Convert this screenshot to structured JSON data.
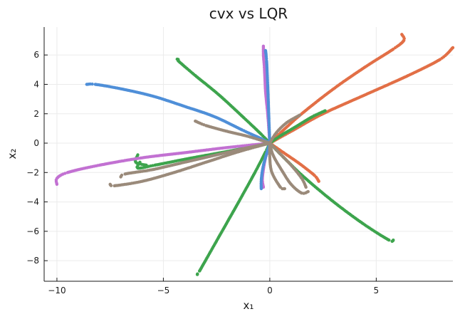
{
  "chart_data": {
    "type": "scatter",
    "title": "cvx vs LQR",
    "xlabel": "x₁",
    "ylabel": "x₂",
    "xlim": [
      -10.6,
      8.6
    ],
    "ylim": [
      -9.4,
      7.9
    ],
    "xticks": [
      -10,
      -5,
      0,
      5
    ],
    "yticks": [
      -8,
      -6,
      -4,
      -2,
      0,
      2,
      4,
      6
    ],
    "xtick_labels": [
      "−10",
      "−5",
      "0",
      "5"
    ],
    "ytick_labels": [
      "−8",
      "−6",
      "−4",
      "−2",
      "0",
      "2",
      "4",
      "6"
    ],
    "grid": true,
    "legend": false,
    "series": [
      {
        "color": "#e26f46",
        "points": [
          [
            6.2,
            7.4
          ],
          [
            6.3,
            7.0
          ],
          [
            5.8,
            6.4
          ],
          [
            4.5,
            5.2
          ],
          [
            3.0,
            3.7
          ],
          [
            1.5,
            2.0
          ],
          [
            0.5,
            0.7
          ],
          [
            0,
            0
          ]
        ]
      },
      {
        "color": "#e26f46",
        "points": [
          [
            8.6,
            6.5
          ],
          [
            8.0,
            5.7
          ],
          [
            6.5,
            4.6
          ],
          [
            4.5,
            3.3
          ],
          [
            2.5,
            2.0
          ],
          [
            1.0,
            0.8
          ],
          [
            0,
            0
          ]
        ]
      },
      {
        "color": "#e26f46",
        "points": [
          [
            2.3,
            -2.6
          ],
          [
            2.1,
            -2.2
          ],
          [
            1.4,
            -1.4
          ],
          [
            0.7,
            -0.7
          ],
          [
            0,
            0
          ]
        ]
      },
      {
        "color": "#3da44d",
        "points": [
          [
            -4.3,
            5.7
          ],
          [
            -4.3,
            5.6
          ],
          [
            -3.5,
            4.6
          ],
          [
            -2.4,
            3.3
          ],
          [
            -1.2,
            1.7
          ],
          [
            -0.4,
            0.6
          ],
          [
            0,
            0
          ]
        ]
      },
      {
        "color": "#3da44d",
        "points": [
          [
            -3.4,
            -8.9
          ],
          [
            -3.3,
            -8.7
          ],
          [
            -2.4,
            -6.4
          ],
          [
            -1.5,
            -4.1
          ],
          [
            -0.7,
            -2.0
          ],
          [
            -0.2,
            -0.6
          ],
          [
            0,
            0
          ]
        ]
      },
      {
        "color": "#3da44d",
        "points": [
          [
            5.8,
            -6.6
          ],
          [
            5.6,
            -6.6
          ],
          [
            4.4,
            -5.5
          ],
          [
            3.0,
            -4.0
          ],
          [
            1.6,
            -2.3
          ],
          [
            0.6,
            -0.9
          ],
          [
            0,
            0
          ]
        ]
      },
      {
        "color": "#3da44d",
        "points": [
          [
            -6.1,
            -1.3
          ],
          [
            -6.2,
            -1.7
          ],
          [
            -5.4,
            -1.5
          ],
          [
            -4.0,
            -1.1
          ],
          [
            -2.5,
            -0.7
          ],
          [
            -1.2,
            -0.35
          ],
          [
            0,
            0
          ]
        ]
      },
      {
        "color": "#3da44d",
        "points": [
          [
            -6.2,
            -0.8
          ],
          [
            -6.3,
            -1.3
          ],
          [
            -5.8,
            -1.5
          ]
        ]
      },
      {
        "color": "#3da44d",
        "points": [
          [
            2.6,
            2.2
          ],
          [
            2.0,
            1.8
          ],
          [
            1.2,
            1.1
          ],
          [
            0.5,
            0.5
          ],
          [
            0,
            0
          ]
        ]
      },
      {
        "color": "#c271d2",
        "points": [
          [
            -10.0,
            -2.8
          ],
          [
            -10.0,
            -2.4
          ],
          [
            -9.5,
            -2.0
          ],
          [
            -8.0,
            -1.5
          ],
          [
            -6.0,
            -1.0
          ],
          [
            -4.0,
            -0.65
          ],
          [
            -2.0,
            -0.3
          ],
          [
            0,
            0
          ]
        ]
      },
      {
        "color": "#c271d2",
        "points": [
          [
            -0.3,
            6.6
          ],
          [
            -0.3,
            6.0
          ],
          [
            -0.25,
            5.0
          ],
          [
            -0.2,
            3.5
          ],
          [
            -0.1,
            2.0
          ],
          [
            0,
            0
          ]
        ]
      },
      {
        "color": "#c271d2",
        "points": [
          [
            -0.3,
            -3.0
          ],
          [
            -0.35,
            -2.5
          ],
          [
            -0.3,
            -1.8
          ],
          [
            -0.2,
            -1.0
          ],
          [
            -0.05,
            -0.3
          ],
          [
            0,
            0
          ]
        ]
      },
      {
        "color": "#4f8fd8",
        "points": [
          [
            -8.6,
            4.0
          ],
          [
            -8.2,
            4.0
          ],
          [
            -7.0,
            3.7
          ],
          [
            -5.5,
            3.2
          ],
          [
            -4.0,
            2.5
          ],
          [
            -2.6,
            1.8
          ],
          [
            -1.3,
            0.9
          ],
          [
            -0.4,
            0.3
          ],
          [
            0,
            0
          ]
        ]
      },
      {
        "color": "#4f8fd8",
        "points": [
          [
            -0.2,
            6.3
          ],
          [
            -0.15,
            5.6
          ],
          [
            -0.1,
            4.0
          ],
          [
            -0.05,
            2.0
          ],
          [
            0,
            0
          ]
        ]
      },
      {
        "color": "#4f8fd8",
        "points": [
          [
            -0.4,
            -3.1
          ],
          [
            -0.4,
            -2.5
          ],
          [
            -0.3,
            -1.5
          ],
          [
            0,
            0
          ]
        ]
      },
      {
        "color": "#9a8a7a",
        "points": [
          [
            -3.5,
            1.5
          ],
          [
            -3.0,
            1.2
          ],
          [
            -2.0,
            0.8
          ],
          [
            -1.0,
            0.45
          ],
          [
            0,
            0
          ]
        ]
      },
      {
        "color": "#9a8a7a",
        "points": [
          [
            1.4,
            1.9
          ],
          [
            0.8,
            1.4
          ],
          [
            0.3,
            0.7
          ],
          [
            0,
            0
          ]
        ]
      },
      {
        "color": "#9a8a7a",
        "points": [
          [
            -7.5,
            -2.8
          ],
          [
            -7.3,
            -2.9
          ],
          [
            -6.0,
            -2.6
          ],
          [
            -4.5,
            -2.0
          ],
          [
            -3.0,
            -1.3
          ],
          [
            -1.5,
            -0.6
          ],
          [
            0,
            0
          ]
        ]
      },
      {
        "color": "#9a8a7a",
        "points": [
          [
            -7.0,
            -2.3
          ],
          [
            -6.8,
            -2.1
          ],
          [
            -5.5,
            -1.8
          ],
          [
            -4.0,
            -1.3
          ],
          [
            -2.5,
            -0.8
          ],
          [
            -1.0,
            -0.3
          ],
          [
            0,
            0
          ]
        ]
      },
      {
        "color": "#9a8a7a",
        "points": [
          [
            0.7,
            -3.1
          ],
          [
            0.5,
            -3.0
          ],
          [
            0.1,
            -2.0
          ],
          [
            0,
            -1.0
          ],
          [
            0,
            0
          ]
        ]
      },
      {
        "color": "#9a8a7a",
        "points": [
          [
            1.8,
            -3.3
          ],
          [
            1.5,
            -3.4
          ],
          [
            1.0,
            -2.8
          ],
          [
            0.5,
            -1.7
          ],
          [
            0.15,
            -0.8
          ],
          [
            0,
            0
          ]
        ]
      },
      {
        "color": "#9a8a7a",
        "points": [
          [
            1.7,
            -3.0
          ],
          [
            1.5,
            -2.4
          ],
          [
            1.0,
            -1.5
          ],
          [
            0.4,
            -0.6
          ],
          [
            0,
            0
          ]
        ]
      }
    ]
  }
}
